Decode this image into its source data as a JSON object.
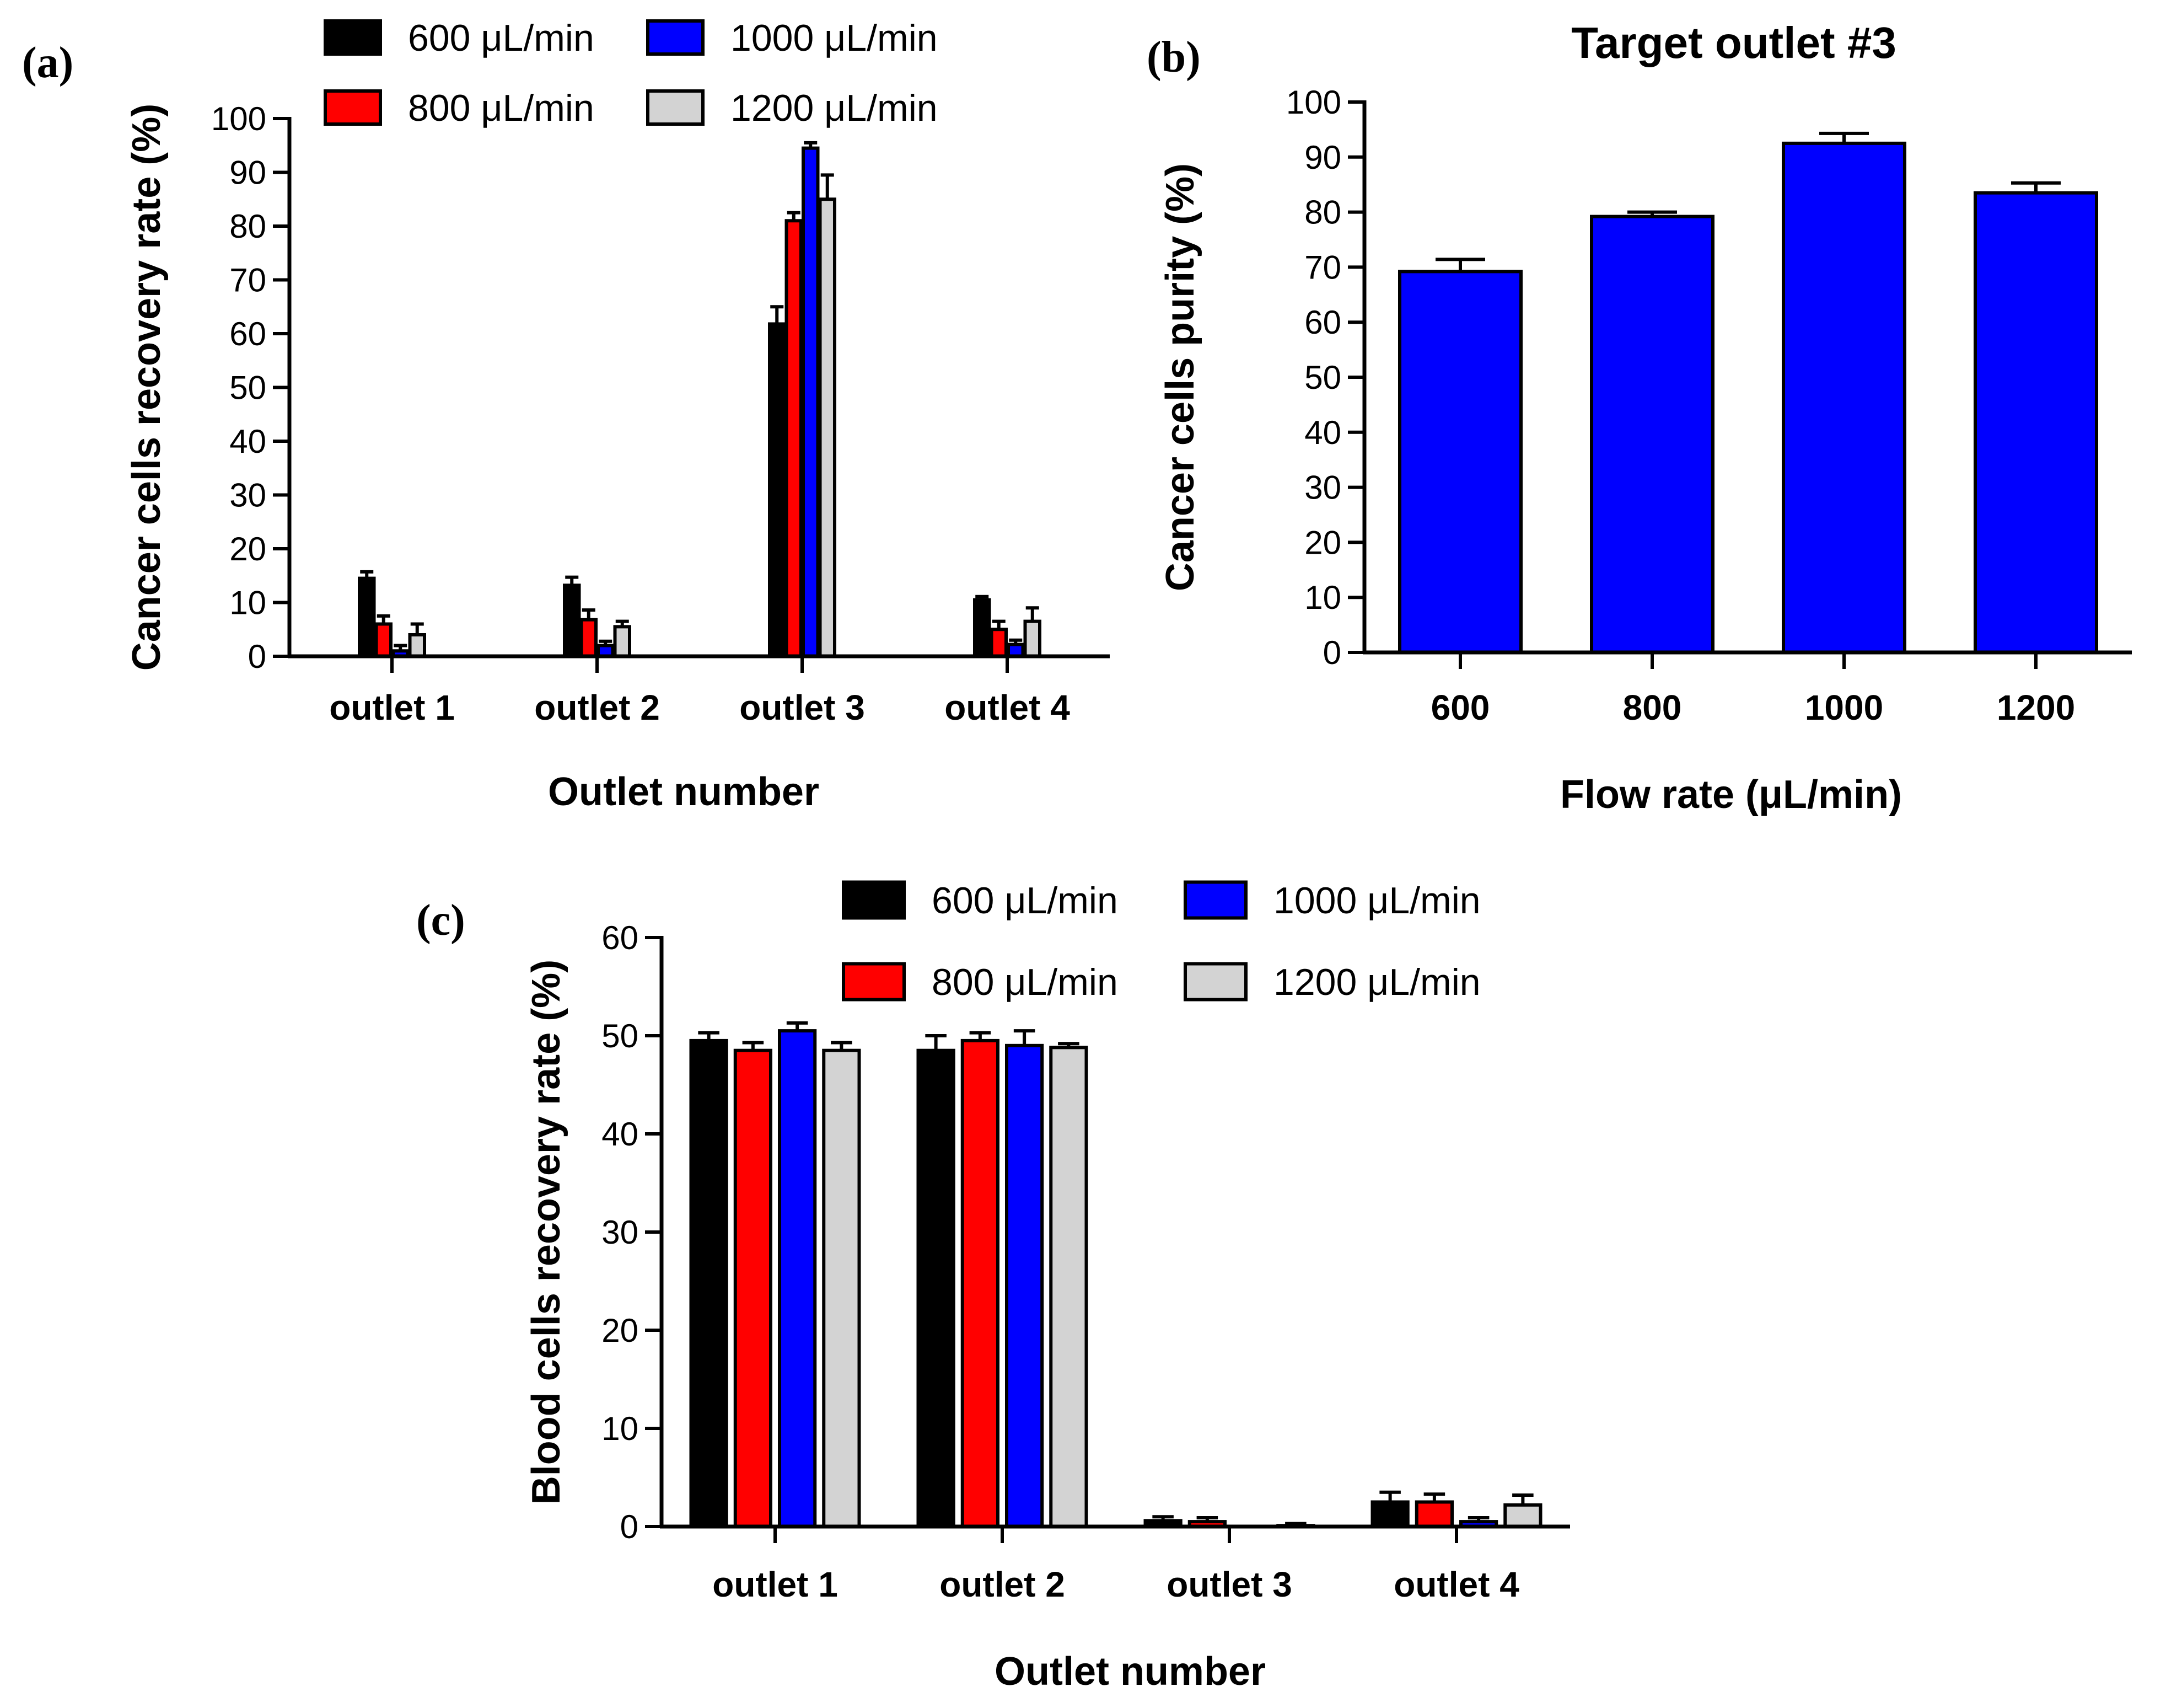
{
  "colors": {
    "s600": "#000000",
    "s800": "#ff0000",
    "s1000": "#0000ff",
    "s1200": "#d3d3d3",
    "axis": "#000000"
  },
  "chart_data": [
    {
      "panel": "(a)",
      "type": "bar",
      "title": "",
      "xlabel": "Outlet number",
      "ylabel": "Cancer cells recovery rate (%)",
      "ylim": [
        0,
        100
      ],
      "yticks": [
        0,
        10,
        20,
        30,
        40,
        50,
        60,
        70,
        80,
        90,
        100
      ],
      "categories": [
        "outlet 1",
        "outlet 2",
        "outlet 3",
        "outlet 4"
      ],
      "legend": "top",
      "series": [
        {
          "name": "600 μL/min",
          "color": "#000000",
          "values": [
            14.5,
            13.2,
            61.8,
            10.5
          ],
          "errors": [
            1.2,
            1.5,
            3.2,
            0.6
          ]
        },
        {
          "name": "800 μL/min",
          "color": "#ff0000",
          "values": [
            6.0,
            6.8,
            81.0,
            5.0
          ],
          "errors": [
            1.5,
            1.8,
            1.5,
            1.5
          ]
        },
        {
          "name": "1000 μL/min",
          "color": "#0000ff",
          "values": [
            1.0,
            2.0,
            94.5,
            2.2
          ],
          "errors": [
            1.0,
            0.8,
            1.0,
            0.8
          ]
        },
        {
          "name": "1200 μL/min",
          "color": "#d3d3d3",
          "values": [
            4.0,
            5.5,
            85.0,
            6.5
          ],
          "errors": [
            2.0,
            1.0,
            4.5,
            2.5
          ]
        }
      ]
    },
    {
      "panel": "(b)",
      "type": "bar",
      "title": "Target outlet #3",
      "xlabel": "Flow rate (μL/min)",
      "ylabel": "Cancer cells purity (%)",
      "ylim": [
        0,
        100
      ],
      "yticks": [
        0,
        10,
        20,
        30,
        40,
        50,
        60,
        70,
        80,
        90,
        100
      ],
      "categories": [
        "600",
        "800",
        "1000",
        "1200"
      ],
      "series": [
        {
          "name": "Purity",
          "color": "#0000ff",
          "values": [
            69.2,
            79.2,
            92.5,
            83.5
          ],
          "errors": [
            2.2,
            0.8,
            1.8,
            1.8
          ]
        }
      ]
    },
    {
      "panel": "(c)",
      "type": "bar",
      "title": "",
      "xlabel": "Outlet number",
      "ylabel": "Blood cells recovery rate (%)",
      "ylim": [
        0,
        60
      ],
      "yticks": [
        0,
        10,
        20,
        30,
        40,
        50,
        60
      ],
      "categories": [
        "outlet 1",
        "outlet 2",
        "outlet 3",
        "outlet 4"
      ],
      "legend": "top",
      "series": [
        {
          "name": "600 μL/min",
          "color": "#000000",
          "values": [
            49.5,
            48.5,
            0.6,
            2.5
          ],
          "errors": [
            0.8,
            1.5,
            0.4,
            1.0
          ]
        },
        {
          "name": "800 μL/min",
          "color": "#ff0000",
          "values": [
            48.5,
            49.5,
            0.5,
            2.5
          ],
          "errors": [
            0.8,
            0.8,
            0.4,
            0.8
          ]
        },
        {
          "name": "1000 μL/min",
          "color": "#0000ff",
          "values": [
            50.5,
            49.0,
            0.0,
            0.5
          ],
          "errors": [
            0.8,
            1.5,
            0.0,
            0.4
          ]
        },
        {
          "name": "1200 μL/min",
          "color": "#d3d3d3",
          "values": [
            48.5,
            48.8,
            0.1,
            2.2
          ],
          "errors": [
            0.8,
            0.4,
            0.2,
            1.0
          ]
        }
      ]
    }
  ]
}
